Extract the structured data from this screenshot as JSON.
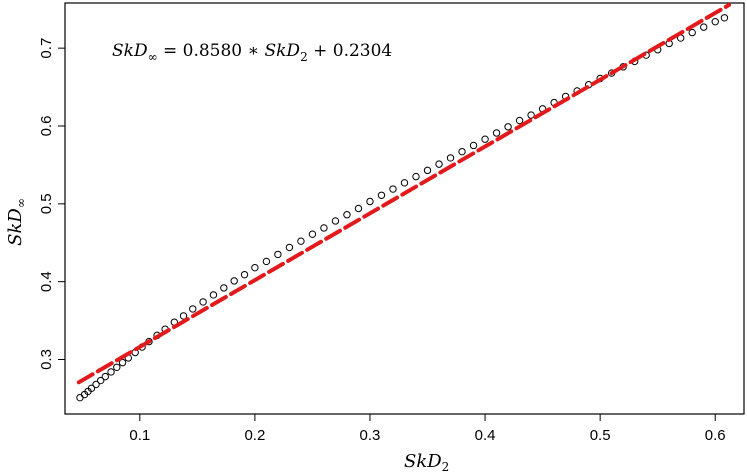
{
  "chart_data": {
    "type": "scatter",
    "title": "",
    "xlabel": "SkD",
    "xlabel_sub": "2",
    "ylabel": "SkD",
    "ylabel_sub": "∞",
    "xlim": [
      0.035,
      0.625
    ],
    "ylim": [
      0.23,
      0.758
    ],
    "xticks": [
      0.1,
      0.2,
      0.3,
      0.4,
      0.5,
      0.6
    ],
    "xtick_labels": [
      "0.1",
      "0.2",
      "0.3",
      "0.4",
      "0.5",
      "0.6"
    ],
    "yticks": [
      0.3,
      0.4,
      0.5,
      0.6,
      0.7
    ],
    "ytick_labels": [
      "0.3",
      "0.4",
      "0.5",
      "0.6",
      "0.7"
    ],
    "grid": false,
    "annotation": {
      "lhs": "SkD",
      "lhs_sub": "∞",
      "eq": " = 0.8580 ∗ ",
      "rhs": "SkD",
      "rhs_sub": "2",
      "tail": " + 0.2304"
    },
    "series": [
      {
        "marker": "open-circle",
        "color": "#000000",
        "x": [
          0.048,
          0.052,
          0.055,
          0.058,
          0.062,
          0.066,
          0.07,
          0.075,
          0.08,
          0.085,
          0.09,
          0.096,
          0.102,
          0.108,
          0.115,
          0.122,
          0.13,
          0.138,
          0.146,
          0.155,
          0.164,
          0.173,
          0.182,
          0.191,
          0.2,
          0.21,
          0.22,
          0.23,
          0.24,
          0.25,
          0.26,
          0.27,
          0.28,
          0.29,
          0.3,
          0.31,
          0.32,
          0.33,
          0.34,
          0.35,
          0.36,
          0.37,
          0.38,
          0.39,
          0.4,
          0.41,
          0.42,
          0.43,
          0.44,
          0.45,
          0.46,
          0.47,
          0.48,
          0.49,
          0.5,
          0.51,
          0.52,
          0.53,
          0.54,
          0.55,
          0.56,
          0.57,
          0.58,
          0.59,
          0.6,
          0.608
        ],
        "y": [
          0.251,
          0.255,
          0.259,
          0.263,
          0.268,
          0.273,
          0.278,
          0.284,
          0.29,
          0.296,
          0.302,
          0.309,
          0.316,
          0.323,
          0.331,
          0.339,
          0.348,
          0.356,
          0.365,
          0.374,
          0.383,
          0.392,
          0.401,
          0.409,
          0.418,
          0.426,
          0.435,
          0.444,
          0.452,
          0.461,
          0.469,
          0.478,
          0.486,
          0.494,
          0.503,
          0.511,
          0.519,
          0.527,
          0.535,
          0.543,
          0.551,
          0.559,
          0.567,
          0.575,
          0.583,
          0.591,
          0.599,
          0.607,
          0.614,
          0.622,
          0.63,
          0.638,
          0.645,
          0.653,
          0.661,
          0.668,
          0.676,
          0.683,
          0.691,
          0.698,
          0.706,
          0.713,
          0.72,
          0.727,
          0.734,
          0.739
        ]
      },
      {
        "type": "line",
        "style": "dashed",
        "color": "#e31a1c",
        "x": [
          0.047,
          0.612
        ],
        "y": [
          0.2707,
          0.7555
        ]
      }
    ]
  }
}
